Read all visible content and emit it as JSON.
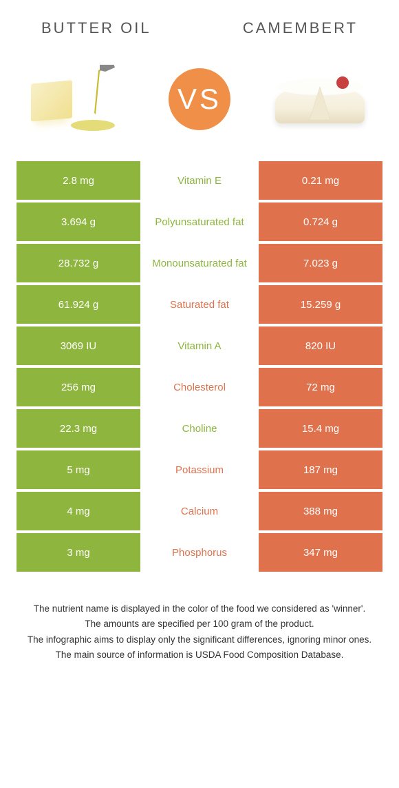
{
  "header": {
    "left_title": "BUTTER OIL",
    "right_title": "CAMEMBERT"
  },
  "vs_label": "VS",
  "colors": {
    "green": "#8eb53e",
    "orange": "#e0714d",
    "green_text": "#8eb53e",
    "orange_text": "#e0714d",
    "cell_white": "#ffffff"
  },
  "rows": [
    {
      "nutrient": "Vitamin E",
      "left_val": "2.8 mg",
      "right_val": "0.21 mg",
      "winner": "left"
    },
    {
      "nutrient": "Polyunsaturated fat",
      "left_val": "3.694 g",
      "right_val": "0.724 g",
      "winner": "left"
    },
    {
      "nutrient": "Monounsaturated fat",
      "left_val": "28.732 g",
      "right_val": "7.023 g",
      "winner": "left"
    },
    {
      "nutrient": "Saturated fat",
      "left_val": "61.924 g",
      "right_val": "15.259 g",
      "winner": "right"
    },
    {
      "nutrient": "Vitamin A",
      "left_val": "3069 IU",
      "right_val": "820 IU",
      "winner": "left"
    },
    {
      "nutrient": "Cholesterol",
      "left_val": "256 mg",
      "right_val": "72 mg",
      "winner": "right"
    },
    {
      "nutrient": "Choline",
      "left_val": "22.3 mg",
      "right_val": "15.4 mg",
      "winner": "left"
    },
    {
      "nutrient": "Potassium",
      "left_val": "5 mg",
      "right_val": "187 mg",
      "winner": "right"
    },
    {
      "nutrient": "Calcium",
      "left_val": "4 mg",
      "right_val": "388 mg",
      "winner": "right"
    },
    {
      "nutrient": "Phosphorus",
      "left_val": "3 mg",
      "right_val": "347 mg",
      "winner": "right"
    }
  ],
  "footer": {
    "line1": "The nutrient name is displayed in the color of the food we considered as 'winner'.",
    "line2": "The amounts are specified per 100 gram of the product.",
    "line3": "The infographic aims to display only the significant differences, ignoring minor ones.",
    "line4": "The main source of information is USDA Food Composition Database."
  }
}
